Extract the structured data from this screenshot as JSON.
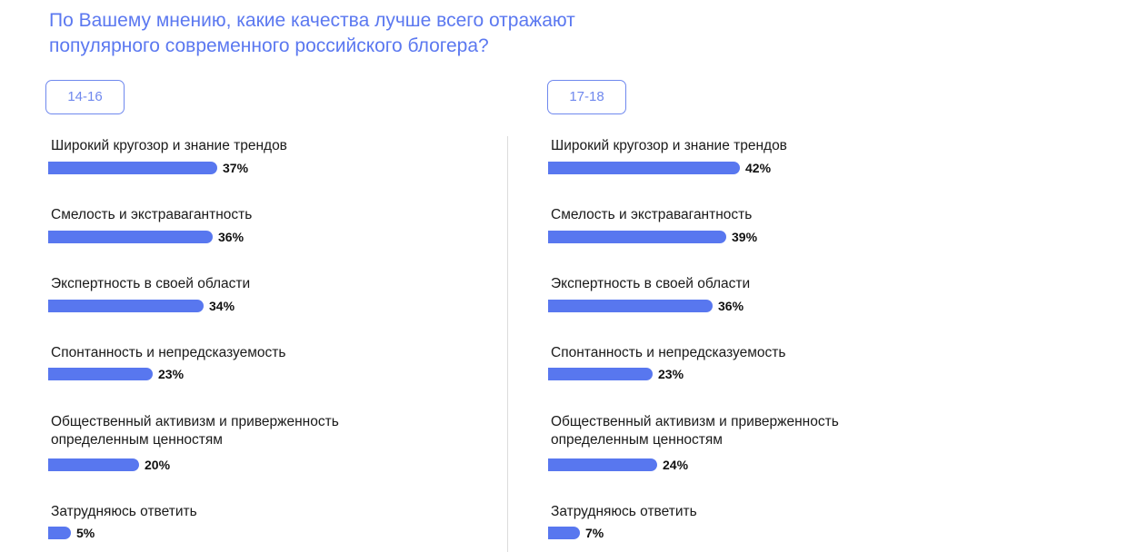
{
  "title_lines": [
    "По Вашему мнению, какие качества лучше всего отражают",
    "популярного современного российского блогера?"
  ],
  "colors": {
    "accent": "#5877ef",
    "title": "#5b78f0",
    "divider": "#dcdcdc"
  },
  "chart_data": [
    {
      "type": "bar",
      "orientation": "horizontal",
      "group_label": "14-16",
      "categories": [
        "Широкий кругозор и знание трендов",
        "Смелость и экстравагантность",
        "Экспертность в своей области",
        "Спонтанность и непредсказуемость",
        "Общественный активизм и приверженность определенным ценностям",
        "Затрудняюсь ответить"
      ],
      "category_lines": [
        [
          "Широкий кругозор и знание трендов"
        ],
        [
          "Смелость и экстравагантность"
        ],
        [
          "Экспертность в своей области"
        ],
        [
          "Спонтанность и непредсказуемость"
        ],
        [
          "Общественный активизм и приверженность",
          "определенным ценностям"
        ],
        [
          "Затрудняюсь ответить"
        ]
      ],
      "values": [
        37,
        36,
        34,
        23,
        20,
        5
      ],
      "value_labels": [
        "37%",
        "36%",
        "34%",
        "23%",
        "20%",
        "5%"
      ],
      "unit": "%",
      "xlim": [
        0,
        100
      ]
    },
    {
      "type": "bar",
      "orientation": "horizontal",
      "group_label": "17-18",
      "categories": [
        "Широкий кругозор и знание трендов",
        "Смелость и экстравагантность",
        "Экспертность в своей области",
        "Спонтанность и непредсказуемость",
        "Общественный активизм и приверженность определенным ценностям",
        "Затрудняюсь ответить"
      ],
      "category_lines": [
        [
          "Широкий кругозор и знание трендов"
        ],
        [
          "Смелость и экстравагантность"
        ],
        [
          "Экспертность в своей области"
        ],
        [
          "Спонтанность и непредсказуемость"
        ],
        [
          "Общественный активизм и приверженность",
          "определенным ценностям"
        ],
        [
          "Затрудняюсь ответить"
        ]
      ],
      "values": [
        42,
        39,
        36,
        23,
        24,
        7
      ],
      "value_labels": [
        "42%",
        "39%",
        "36%",
        "23%",
        "24%",
        "7%"
      ],
      "unit": "%",
      "xlim": [
        0,
        100
      ]
    }
  ]
}
